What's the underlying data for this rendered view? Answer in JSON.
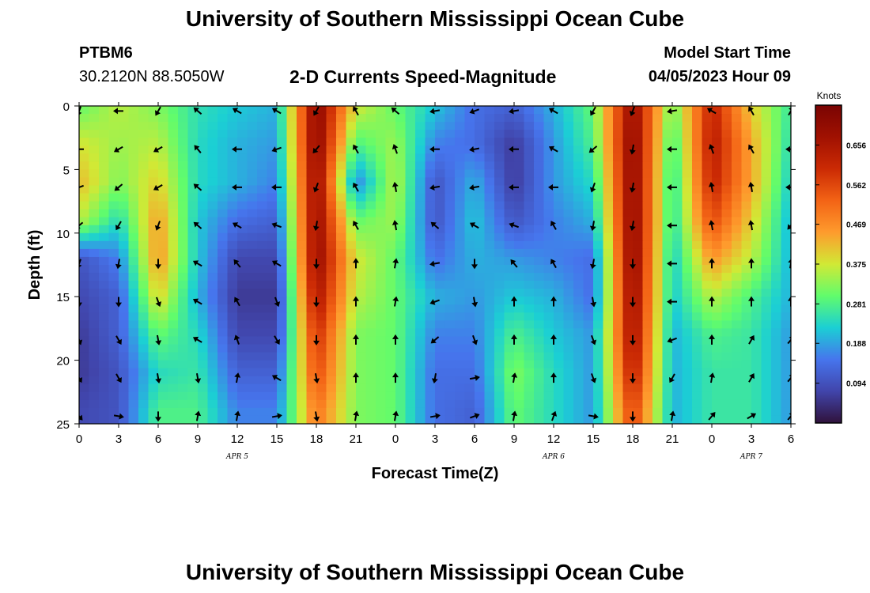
{
  "header": {
    "title": "University of Southern Mississippi Ocean Cube",
    "station_id": "PTBM6",
    "station_coords": "30.2120N  88.5050W",
    "plot_title": "2-D Currents Speed-Magnitude",
    "model_start_label": "Model Start Time",
    "model_start_value": "04/05/2023 Hour 09"
  },
  "footer": {
    "title": "University of Southern Mississippi Ocean Cube"
  },
  "chart_data": {
    "type": "heatmap",
    "title": "2-D Currents Speed-Magnitude",
    "xlabel": "Forecast Time(Z)",
    "ylabel": "Depth (ft)",
    "x_range_hours": [
      0,
      54
    ],
    "x_ticks": [
      "0",
      "3",
      "6",
      "9",
      "12",
      "15",
      "18",
      "21",
      "0",
      "3",
      "6",
      "9",
      "12",
      "15",
      "18",
      "21",
      "0",
      "3",
      "6"
    ],
    "x_tick_hours": [
      0,
      3,
      6,
      9,
      12,
      15,
      18,
      21,
      24,
      27,
      30,
      33,
      36,
      39,
      42,
      45,
      48,
      51,
      54
    ],
    "date_labels": [
      {
        "label": "APR 5",
        "hour": 12
      },
      {
        "label": "APR 6",
        "hour": 36
      },
      {
        "label": "APR 7",
        "hour": 51
      }
    ],
    "y_range_ft": [
      0,
      25
    ],
    "y_ticks": [
      0,
      5,
      10,
      15,
      20,
      25
    ],
    "colorbar": {
      "label": "Knots",
      "min": 0.0,
      "max": 0.75,
      "ticks": [
        "0.656",
        "0.562",
        "0.469",
        "0.375",
        "0.281",
        "0.188",
        "0.094"
      ],
      "tick_values": [
        0.656,
        0.562,
        0.469,
        0.375,
        0.281,
        0.188,
        0.094
      ]
    },
    "speed_field_knots": {
      "column_hours": [
        0,
        3,
        6,
        9,
        12,
        15,
        18,
        21,
        24,
        27,
        30,
        33,
        36,
        39,
        42,
        45,
        48,
        51,
        54
      ],
      "row_depths_ft": [
        0,
        3,
        6,
        9,
        12,
        15,
        18,
        21,
        24
      ],
      "values": [
        [
          0.3,
          0.36,
          0.32,
          0.25,
          0.22,
          0.2,
          0.72,
          0.38,
          0.3,
          0.22,
          0.14,
          0.12,
          0.2,
          0.3,
          0.7,
          0.3,
          0.62,
          0.4,
          0.26
        ],
        [
          0.38,
          0.34,
          0.36,
          0.24,
          0.2,
          0.18,
          0.72,
          0.28,
          0.34,
          0.16,
          0.14,
          0.06,
          0.18,
          0.28,
          0.72,
          0.26,
          0.64,
          0.44,
          0.24
        ],
        [
          0.42,
          0.32,
          0.4,
          0.24,
          0.2,
          0.16,
          0.7,
          0.16,
          0.36,
          0.1,
          0.2,
          0.06,
          0.18,
          0.24,
          0.72,
          0.24,
          0.62,
          0.44,
          0.22
        ],
        [
          0.36,
          0.24,
          0.45,
          0.22,
          0.14,
          0.12,
          0.7,
          0.3,
          0.34,
          0.1,
          0.22,
          0.1,
          0.16,
          0.2,
          0.72,
          0.24,
          0.56,
          0.4,
          0.2
        ],
        [
          0.1,
          0.16,
          0.46,
          0.22,
          0.08,
          0.08,
          0.7,
          0.38,
          0.3,
          0.14,
          0.2,
          0.18,
          0.16,
          0.14,
          0.72,
          0.22,
          0.46,
          0.36,
          0.2
        ],
        [
          0.08,
          0.12,
          0.4,
          0.2,
          0.06,
          0.06,
          0.66,
          0.36,
          0.3,
          0.2,
          0.18,
          0.22,
          0.2,
          0.14,
          0.7,
          0.22,
          0.36,
          0.28,
          0.2
        ],
        [
          0.06,
          0.12,
          0.3,
          0.24,
          0.08,
          0.08,
          0.6,
          0.32,
          0.3,
          0.16,
          0.16,
          0.28,
          0.22,
          0.18,
          0.68,
          0.2,
          0.28,
          0.26,
          0.18
        ],
        [
          0.06,
          0.1,
          0.24,
          0.26,
          0.12,
          0.12,
          0.56,
          0.32,
          0.3,
          0.14,
          0.14,
          0.32,
          0.24,
          0.18,
          0.64,
          0.2,
          0.26,
          0.26,
          0.18
        ],
        [
          0.08,
          0.1,
          0.28,
          0.28,
          0.16,
          0.16,
          0.5,
          0.32,
          0.3,
          0.14,
          0.12,
          0.3,
          0.24,
          0.18,
          0.58,
          0.2,
          0.26,
          0.26,
          0.18
        ]
      ]
    },
    "current_vectors": {
      "hours": [
        0,
        3,
        6,
        9,
        12,
        15,
        18,
        21,
        24,
        27,
        30,
        33,
        36,
        39,
        42,
        45,
        48,
        51,
        54
      ],
      "depths_ft": [
        0,
        3,
        6,
        9,
        12,
        15,
        18,
        21,
        24
      ],
      "direction_deg": [
        [
          200,
          270,
          210,
          310,
          300,
          300,
          210,
          330,
          310,
          260,
          250,
          260,
          300,
          210,
          200,
          260,
          300,
          330,
          30
        ],
        [
          270,
          240,
          240,
          320,
          270,
          250,
          220,
          330,
          340,
          270,
          260,
          270,
          300,
          230,
          190,
          270,
          340,
          330,
          270
        ],
        [
          250,
          230,
          240,
          310,
          270,
          270,
          200,
          330,
          350,
          260,
          260,
          270,
          270,
          200,
          190,
          270,
          350,
          350,
          270
        ],
        [
          230,
          210,
          200,
          310,
          300,
          290,
          190,
          330,
          350,
          310,
          300,
          290,
          330,
          190,
          190,
          270,
          350,
          350,
          220
        ],
        [
          200,
          190,
          180,
          300,
          320,
          300,
          180,
          0,
          10,
          260,
          180,
          320,
          330,
          190,
          180,
          270,
          360,
          0,
          10
        ],
        [
          180,
          180,
          160,
          300,
          330,
          160,
          180,
          0,
          10,
          250,
          170,
          360,
          0,
          170,
          180,
          270,
          0,
          360,
          360
        ],
        [
          160,
          150,
          170,
          300,
          340,
          150,
          180,
          0,
          0,
          230,
          160,
          360,
          0,
          160,
          180,
          250,
          0,
          30,
          40
        ],
        [
          150,
          150,
          170,
          170,
          10,
          300,
          170,
          0,
          0,
          190,
          80,
          10,
          0,
          160,
          180,
          210,
          10,
          30,
          40
        ],
        [
          140,
          100,
          180,
          10,
          10,
          80,
          170,
          10,
          10,
          80,
          70,
          10,
          20,
          100,
          180,
          10,
          40,
          60,
          40
        ]
      ]
    }
  }
}
